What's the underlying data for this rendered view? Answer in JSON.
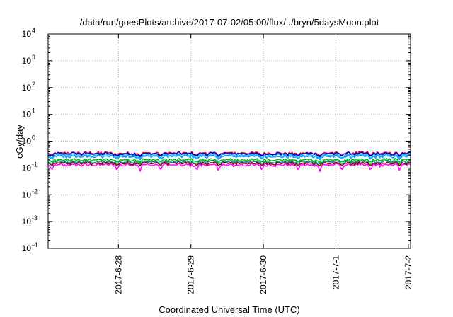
{
  "chart_data": {
    "type": "line",
    "title": "/data/run/goesPlots/archive/2017-07-02/05:00/flux/../bryn/5daysMoon.plot",
    "xlabel": "Coordinated Universal Time (UTC)",
    "ylabel": "cGy/day",
    "yscale": "log",
    "ylim": [
      0.0001,
      10000
    ],
    "xlim": [
      0,
      5
    ],
    "grid": true,
    "y_ticks": [
      {
        "base": "10",
        "exp": "4",
        "value": 10000
      },
      {
        "base": "10",
        "exp": "3",
        "value": 1000
      },
      {
        "base": "10",
        "exp": "2",
        "value": 100
      },
      {
        "base": "10",
        "exp": "1",
        "value": 10
      },
      {
        "base": "10",
        "exp": "0",
        "value": 1
      },
      {
        "base": "10",
        "exp": "-1",
        "value": 0.1
      },
      {
        "base": "10",
        "exp": "-2",
        "value": 0.01
      },
      {
        "base": "10",
        "exp": "-3",
        "value": 0.001
      },
      {
        "base": "10",
        "exp": "-4",
        "value": 0.0001
      }
    ],
    "x_ticks": [
      {
        "label": "2017-6-28",
        "value": 0.97
      },
      {
        "label": "2017-6-29",
        "value": 1.97
      },
      {
        "label": "2017-6-30",
        "value": 2.97
      },
      {
        "label": "2017-7-1",
        "value": 3.97
      },
      {
        "label": "2017-7-2",
        "value": 4.97
      }
    ],
    "series": [
      {
        "color": "#ff00ff",
        "base": 0.13,
        "dip_value": 0.075
      },
      {
        "color": "#8b0000",
        "base": 0.15,
        "dip_value": 0.12
      },
      {
        "color": "#008b8b",
        "base": 0.17,
        "dip_value": 0.14
      },
      {
        "color": "#00c000",
        "base": 0.2,
        "dip_value": 0.16
      },
      {
        "color": "#1e90ff",
        "base": 0.27,
        "dip_value": 0.2
      },
      {
        "color": "#00bfff",
        "base": 0.3,
        "dip_value": 0.22
      },
      {
        "color": "#ff0000",
        "base": 0.36,
        "dip_value": 0.28
      },
      {
        "color": "#0000cd",
        "base": 0.34,
        "dip_value": 0.26
      }
    ],
    "dips_x": [
      0.05,
      0.95,
      1.27,
      1.55,
      2.05,
      2.35,
      2.95,
      3.45,
      3.75,
      4.05,
      4.45,
      4.85
    ]
  }
}
